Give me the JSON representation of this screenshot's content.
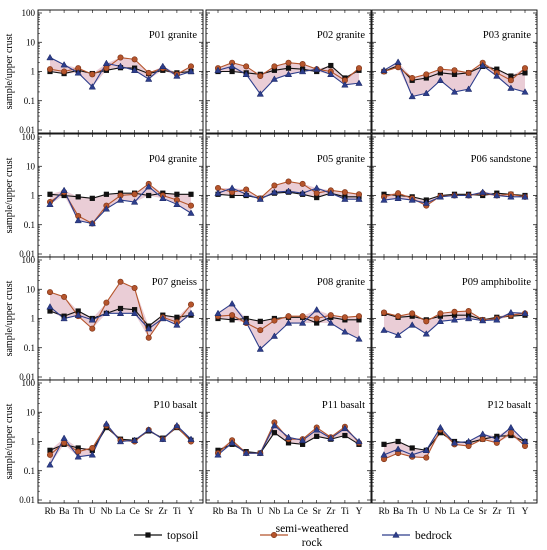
{
  "figure": {
    "ylabel": "sample/upper crust",
    "y_ticks": [
      "100",
      "10",
      "1",
      "0.1",
      "0.01"
    ],
    "x_ticks": [
      "Rb",
      "Ba",
      "Th",
      "U",
      "Nb",
      "La",
      "Ce",
      "Sr",
      "Zr",
      "Ti",
      "Y"
    ],
    "legend": [
      {
        "name": "topsoil",
        "color": "#111111",
        "marker": "square"
      },
      {
        "name": "semi-weathered rock",
        "color": "#b5552c",
        "marker": "circle"
      },
      {
        "name": "bedrock",
        "color": "#2d3e8c",
        "marker": "triangle"
      }
    ],
    "band_color": "#e3bcc8"
  },
  "chart_data": [
    {
      "type": "line",
      "title": "P01 granite",
      "y_scale": "log",
      "ylim": [
        0.01,
        100
      ],
      "x": [
        "Rb",
        "Ba",
        "Th",
        "U",
        "Nb",
        "La",
        "Ce",
        "Sr",
        "Zr",
        "Ti",
        "Y"
      ],
      "series": [
        {
          "name": "topsoil",
          "values": [
            1.0,
            0.85,
            1.1,
            0.85,
            1.1,
            1.35,
            1.3,
            0.85,
            1.1,
            0.9,
            1.0
          ]
        },
        {
          "name": "semi-weathered rock",
          "values": [
            1.2,
            1.0,
            1.3,
            0.8,
            1.3,
            3.0,
            2.6,
            0.9,
            1.3,
            0.8,
            1.5
          ]
        },
        {
          "name": "bedrock",
          "values": [
            3.0,
            1.7,
            0.9,
            0.3,
            1.9,
            1.5,
            1.1,
            0.55,
            1.5,
            0.7,
            1.0
          ]
        }
      ]
    },
    {
      "type": "line",
      "title": "P02 granite",
      "y_scale": "log",
      "ylim": [
        0.01,
        100
      ],
      "x": [
        "Rb",
        "Ba",
        "Th",
        "U",
        "Nb",
        "La",
        "Ce",
        "Sr",
        "Zr",
        "Ti",
        "Y"
      ],
      "series": [
        {
          "name": "topsoil",
          "values": [
            1.0,
            1.0,
            0.9,
            0.8,
            1.1,
            1.3,
            1.2,
            1.0,
            1.6,
            0.6,
            1.1
          ]
        },
        {
          "name": "semi-weathered rock",
          "values": [
            1.3,
            2.0,
            1.5,
            0.7,
            1.5,
            2.0,
            1.8,
            1.2,
            1.0,
            0.5,
            1.3
          ]
        },
        {
          "name": "bedrock",
          "values": [
            1.1,
            1.5,
            0.8,
            0.17,
            0.55,
            0.8,
            1.0,
            1.2,
            0.8,
            0.35,
            0.4
          ]
        }
      ]
    },
    {
      "type": "line",
      "title": "P03 granite",
      "y_scale": "log",
      "ylim": [
        0.01,
        100
      ],
      "x": [
        "Rb",
        "Ba",
        "Th",
        "U",
        "Nb",
        "La",
        "Ce",
        "Sr",
        "Zr",
        "Ti",
        "Y"
      ],
      "series": [
        {
          "name": "topsoil",
          "values": [
            1.0,
            1.6,
            0.5,
            0.6,
            0.9,
            0.8,
            0.9,
            1.5,
            1.2,
            0.7,
            0.9
          ]
        },
        {
          "name": "semi-weathered rock",
          "values": [
            1.0,
            1.4,
            0.6,
            0.8,
            1.2,
            1.1,
            0.9,
            2.0,
            0.9,
            0.5,
            1.3
          ]
        },
        {
          "name": "bedrock",
          "values": [
            1.1,
            2.1,
            0.14,
            0.18,
            0.5,
            0.2,
            0.25,
            1.6,
            0.7,
            0.27,
            0.2
          ]
        }
      ]
    },
    {
      "type": "line",
      "title": "P04 granite",
      "y_scale": "log",
      "ylim": [
        0.01,
        100
      ],
      "x": [
        "Rb",
        "Ba",
        "Th",
        "U",
        "Nb",
        "La",
        "Ce",
        "Sr",
        "Zr",
        "Ti",
        "Y"
      ],
      "series": [
        {
          "name": "topsoil",
          "values": [
            1.1,
            1.0,
            0.9,
            0.8,
            1.1,
            1.2,
            1.2,
            1.0,
            1.2,
            1.1,
            1.1
          ]
        },
        {
          "name": "semi-weathered rock",
          "values": [
            0.6,
            1.3,
            0.2,
            0.11,
            0.45,
            1.0,
            1.1,
            2.5,
            1.0,
            0.7,
            0.45
          ]
        },
        {
          "name": "bedrock",
          "values": [
            0.5,
            1.5,
            0.14,
            0.11,
            0.35,
            0.7,
            0.6,
            2.0,
            0.8,
            0.5,
            0.25
          ]
        }
      ]
    },
    {
      "type": "line",
      "title": "P05 granite",
      "y_scale": "log",
      "ylim": [
        0.01,
        100
      ],
      "x": [
        "Rb",
        "Ba",
        "Th",
        "U",
        "Nb",
        "La",
        "Ce",
        "Sr",
        "Zr",
        "Ti",
        "Y"
      ],
      "series": [
        {
          "name": "topsoil",
          "values": [
            1.1,
            1.0,
            1.0,
            0.8,
            1.2,
            1.3,
            1.1,
            0.85,
            1.2,
            0.9,
            0.9
          ]
        },
        {
          "name": "semi-weathered rock",
          "values": [
            1.8,
            1.3,
            1.6,
            0.8,
            2.2,
            3.0,
            2.5,
            1.2,
            1.5,
            1.3,
            1.1
          ]
        },
        {
          "name": "bedrock",
          "values": [
            1.2,
            1.8,
            1.1,
            0.75,
            1.3,
            1.4,
            1.2,
            1.8,
            1.2,
            0.75,
            0.75
          ]
        }
      ]
    },
    {
      "type": "line",
      "title": "P06 sandstone",
      "y_scale": "log",
      "ylim": [
        0.01,
        100
      ],
      "x": [
        "Rb",
        "Ba",
        "Th",
        "U",
        "Nb",
        "La",
        "Ce",
        "Sr",
        "Zr",
        "Ti",
        "Y"
      ],
      "series": [
        {
          "name": "topsoil",
          "values": [
            1.1,
            1.0,
            0.9,
            0.7,
            1.0,
            1.1,
            1.1,
            1.0,
            1.2,
            1.1,
            1.0
          ]
        },
        {
          "name": "semi-weathered rock",
          "values": [
            0.9,
            1.2,
            0.8,
            0.45,
            0.95,
            1.0,
            1.0,
            1.2,
            1.0,
            1.1,
            0.9
          ]
        },
        {
          "name": "bedrock",
          "values": [
            0.7,
            0.8,
            0.7,
            0.55,
            0.9,
            1.0,
            1.0,
            1.3,
            1.0,
            0.9,
            0.9
          ]
        }
      ]
    },
    {
      "type": "line",
      "title": "P07 gneiss",
      "y_scale": "log",
      "ylim": [
        0.01,
        100
      ],
      "x": [
        "Rb",
        "Ba",
        "Th",
        "U",
        "Nb",
        "La",
        "Ce",
        "Sr",
        "Zr",
        "Ti",
        "Y"
      ],
      "series": [
        {
          "name": "topsoil",
          "values": [
            1.8,
            1.2,
            1.8,
            1.0,
            1.5,
            2.2,
            2.0,
            0.55,
            1.3,
            1.1,
            1.3
          ]
        },
        {
          "name": "semi-weathered rock",
          "values": [
            8.0,
            5.5,
            1.2,
            0.45,
            3.5,
            18.0,
            11.0,
            0.22,
            1.1,
            0.75,
            3.0
          ]
        },
        {
          "name": "bedrock",
          "values": [
            2.5,
            1.0,
            1.3,
            0.9,
            1.5,
            1.5,
            1.5,
            0.45,
            1.0,
            0.6,
            1.5
          ]
        }
      ]
    },
    {
      "type": "line",
      "title": "P08 granite",
      "y_scale": "log",
      "ylim": [
        0.01,
        100
      ],
      "x": [
        "Rb",
        "Ba",
        "Th",
        "U",
        "Nb",
        "La",
        "Ce",
        "Sr",
        "Zr",
        "Ti",
        "Y"
      ],
      "series": [
        {
          "name": "topsoil",
          "values": [
            1.0,
            0.9,
            1.0,
            0.8,
            1.0,
            1.1,
            1.1,
            0.7,
            1.1,
            0.9,
            0.9
          ]
        },
        {
          "name": "semi-weathered rock",
          "values": [
            1.2,
            1.3,
            0.7,
            0.4,
            0.85,
            1.2,
            1.2,
            1.0,
            1.3,
            1.1,
            1.2
          ]
        },
        {
          "name": "bedrock",
          "values": [
            1.5,
            3.2,
            0.75,
            0.09,
            0.25,
            0.7,
            0.7,
            2.0,
            0.7,
            0.35,
            0.2
          ]
        }
      ]
    },
    {
      "type": "line",
      "title": "P09 amphibolite",
      "y_scale": "log",
      "ylim": [
        0.01,
        100
      ],
      "x": [
        "Rb",
        "Ba",
        "Th",
        "U",
        "Nb",
        "La",
        "Ce",
        "Sr",
        "Zr",
        "Ti",
        "Y"
      ],
      "series": [
        {
          "name": "topsoil",
          "values": [
            1.5,
            1.1,
            1.2,
            0.9,
            1.2,
            1.3,
            1.3,
            0.9,
            1.1,
            1.2,
            1.3
          ]
        },
        {
          "name": "semi-weathered rock",
          "values": [
            1.6,
            1.2,
            1.5,
            0.8,
            1.5,
            1.7,
            1.8,
            0.9,
            1.0,
            1.3,
            1.5
          ]
        },
        {
          "name": "bedrock",
          "values": [
            0.4,
            0.27,
            0.6,
            0.3,
            0.8,
            0.9,
            1.0,
            0.85,
            0.9,
            1.6,
            1.5
          ]
        }
      ]
    },
    {
      "type": "line",
      "title": "P10 basalt",
      "y_scale": "log",
      "ylim": [
        0.01,
        100
      ],
      "x": [
        "Rb",
        "Ba",
        "Th",
        "U",
        "Nb",
        "La",
        "Ce",
        "Sr",
        "Zr",
        "Ti",
        "Y"
      ],
      "series": [
        {
          "name": "topsoil",
          "values": [
            0.5,
            0.8,
            0.6,
            0.5,
            3.0,
            1.2,
            1.1,
            2.3,
            1.3,
            3.0,
            1.1
          ]
        },
        {
          "name": "semi-weathered rock",
          "values": [
            0.35,
            0.9,
            0.45,
            0.6,
            3.5,
            1.1,
            1.0,
            2.5,
            1.2,
            3.2,
            1.0
          ]
        },
        {
          "name": "bedrock",
          "values": [
            0.16,
            1.3,
            0.3,
            0.35,
            4.0,
            1.0,
            1.1,
            2.5,
            1.2,
            3.5,
            1.2
          ]
        }
      ]
    },
    {
      "type": "line",
      "title": "P11 basalt",
      "y_scale": "log",
      "ylim": [
        0.01,
        100
      ],
      "x": [
        "Rb",
        "Ba",
        "Th",
        "U",
        "Nb",
        "La",
        "Ce",
        "Sr",
        "Zr",
        "Ti",
        "Y"
      ],
      "series": [
        {
          "name": "topsoil",
          "values": [
            0.5,
            0.8,
            0.45,
            0.4,
            2.0,
            0.9,
            0.8,
            1.5,
            1.2,
            1.6,
            0.8
          ]
        },
        {
          "name": "semi-weathered rock",
          "values": [
            0.4,
            1.1,
            0.4,
            0.4,
            4.5,
            1.2,
            1.2,
            3.0,
            1.4,
            3.2,
            0.9
          ]
        },
        {
          "name": "bedrock",
          "values": [
            0.35,
            0.9,
            0.4,
            0.4,
            3.5,
            1.4,
            1.1,
            2.5,
            1.3,
            2.8,
            1.0
          ]
        }
      ]
    },
    {
      "type": "line",
      "title": "P12 basalt",
      "y_scale": "log",
      "ylim": [
        0.01,
        100
      ],
      "x": [
        "Rb",
        "Ba",
        "Th",
        "U",
        "Nb",
        "La",
        "Ce",
        "Sr",
        "Zr",
        "Ti",
        "Y"
      ],
      "series": [
        {
          "name": "topsoil",
          "values": [
            0.8,
            1.0,
            0.6,
            0.5,
            2.0,
            1.0,
            0.9,
            1.2,
            1.5,
            1.6,
            1.0
          ]
        },
        {
          "name": "semi-weathered rock",
          "values": [
            0.25,
            0.4,
            0.3,
            0.28,
            2.5,
            0.8,
            0.7,
            1.2,
            0.9,
            2.0,
            0.7
          ]
        },
        {
          "name": "bedrock",
          "values": [
            0.35,
            0.55,
            0.35,
            0.5,
            3.0,
            0.9,
            1.0,
            1.8,
            1.2,
            3.0,
            1.0
          ]
        }
      ]
    }
  ]
}
